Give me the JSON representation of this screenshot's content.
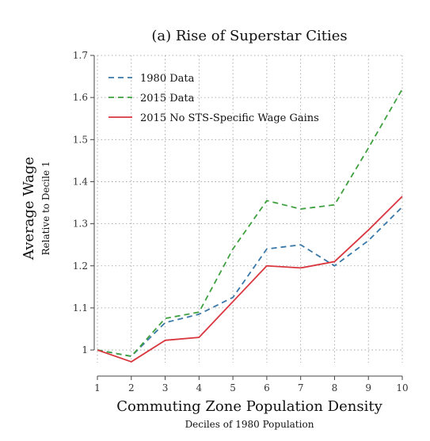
{
  "chart_data": {
    "type": "line",
    "title": "(a) Rise of Superstar Cities",
    "xlabel": "Commuting Zone Population Density",
    "xlabel_sub": "Deciles of 1980 Population",
    "ylabel": "Average Wage",
    "ylabel_sub": "Relative to Decile 1",
    "x": [
      1,
      2,
      3,
      4,
      5,
      6,
      7,
      8,
      9,
      10
    ],
    "x_ticks": [
      "1",
      "2",
      "3",
      "4",
      "5",
      "6",
      "7",
      "8",
      "9",
      "10"
    ],
    "y_ticks": [
      "1",
      "1.1",
      "1.2",
      "1.3",
      "1.4",
      "1.5",
      "1.6",
      "1.7"
    ],
    "xlim": [
      1,
      10
    ],
    "ylim": [
      0.97,
      1.7
    ],
    "grid": true,
    "legend_position": "top-left",
    "series": [
      {
        "name": "1980 Data",
        "color": "#3a78a8",
        "dash": "dashed",
        "values": [
          1.0,
          0.985,
          1.065,
          1.085,
          1.125,
          1.24,
          1.25,
          1.2,
          1.26,
          1.34
        ]
      },
      {
        "name": "2015 Data",
        "color": "#3fa03f",
        "dash": "dashed",
        "values": [
          1.0,
          0.985,
          1.075,
          1.09,
          1.24,
          1.355,
          1.335,
          1.345,
          1.48,
          1.62
        ]
      },
      {
        "name": "2015 No STS-Specific Wage Gains",
        "color": "#d9363e",
        "dash": "solid",
        "values": [
          1.0,
          0.972,
          1.023,
          1.03,
          1.115,
          1.2,
          1.195,
          1.21,
          1.285,
          1.365
        ]
      }
    ]
  }
}
